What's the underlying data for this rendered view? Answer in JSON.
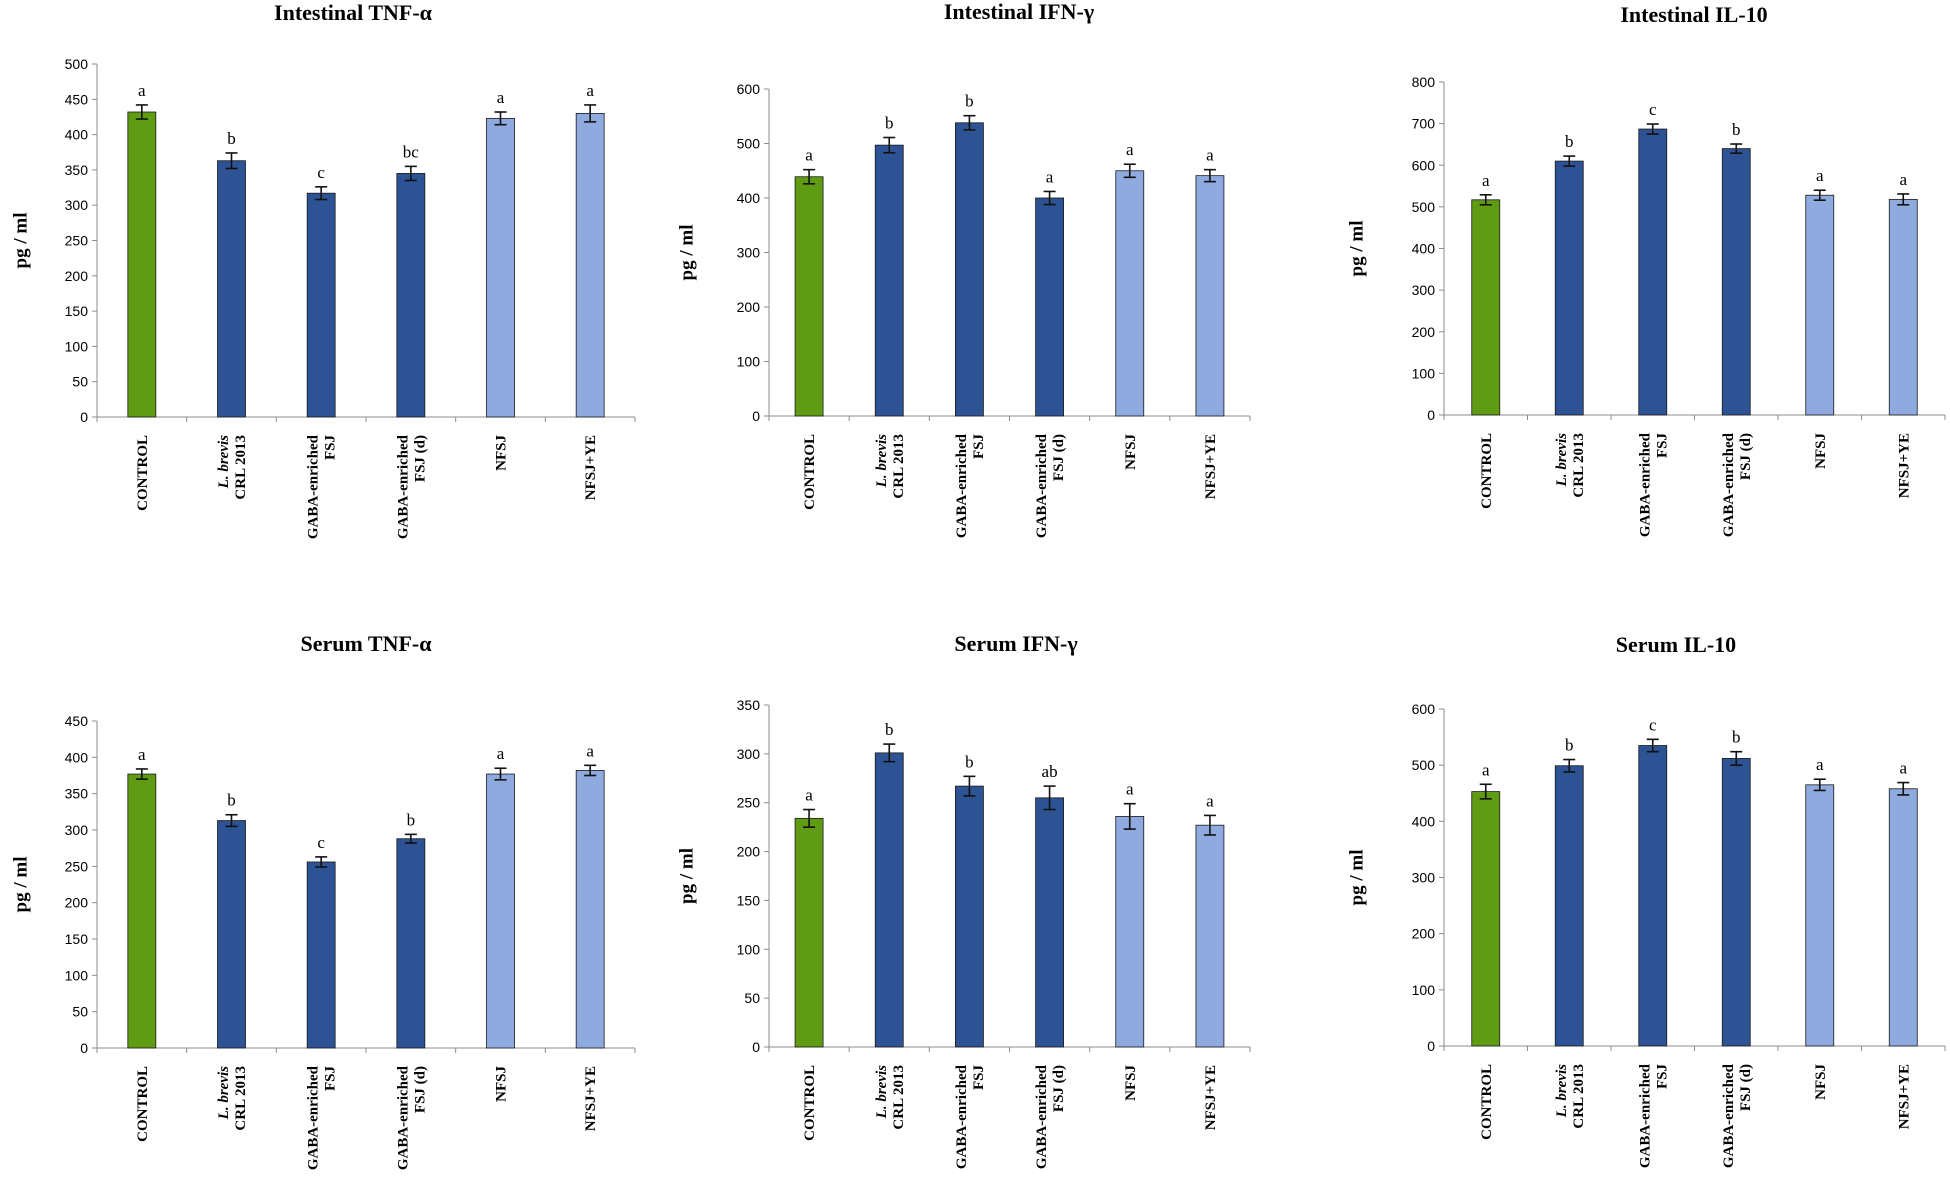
{
  "palette": {
    "control": "#5f9b13",
    "treatment_dark": "#2e5395",
    "treatment_light": "#8eaadf"
  },
  "chart_data": [
    {
      "type": "bar",
      "title": "Intestinal TNF-α",
      "ylabel": "pg / ml",
      "ylim": [
        0,
        500
      ],
      "yticks": [
        0,
        50,
        100,
        150,
        200,
        250,
        300,
        350,
        400,
        450,
        500
      ],
      "categories": [
        {
          "lines": [
            {
              "text": "CONTROL",
              "italic": false
            }
          ]
        },
        {
          "lines": [
            {
              "text": "L. brevis",
              "italic": true
            },
            {
              "text": "CRL 2013",
              "italic": false
            }
          ]
        },
        {
          "lines": [
            {
              "text": "GABA-enriched",
              "italic": false
            },
            {
              "text": "FSJ",
              "italic": false
            }
          ]
        },
        {
          "lines": [
            {
              "text": "GABA-enriched",
              "italic": false
            },
            {
              "text": "FSJ (d)",
              "italic": false
            }
          ]
        },
        {
          "lines": [
            {
              "text": "NFSJ",
              "italic": false
            }
          ]
        },
        {
          "lines": [
            {
              "text": "NFSJ+YE",
              "italic": false
            }
          ]
        }
      ],
      "values": [
        432,
        363,
        317,
        345,
        423,
        430
      ],
      "errors": [
        10,
        11,
        9,
        10,
        9,
        12
      ],
      "letters": [
        "a",
        "b",
        "c",
        "bc",
        "a",
        "a"
      ],
      "bar_colors": [
        "#5f9b13",
        "#2e5395",
        "#2e5395",
        "#2e5395",
        "#8eaadf",
        "#8eaadf"
      ]
    },
    {
      "type": "bar",
      "title": "Intestinal IFN-γ",
      "ylabel": "pg / ml",
      "ylim": [
        0,
        600
      ],
      "yticks": [
        0,
        100,
        200,
        300,
        400,
        500,
        600
      ],
      "categories": [
        {
          "lines": [
            {
              "text": "CONTROL",
              "italic": false
            }
          ]
        },
        {
          "lines": [
            {
              "text": "L. brevis",
              "italic": true
            },
            {
              "text": "CRL 2013",
              "italic": false
            }
          ]
        },
        {
          "lines": [
            {
              "text": "GABA-enriched",
              "italic": false
            },
            {
              "text": "FSJ",
              "italic": false
            }
          ]
        },
        {
          "lines": [
            {
              "text": "GABA-enriched",
              "italic": false
            },
            {
              "text": "FSJ (d)",
              "italic": false
            }
          ]
        },
        {
          "lines": [
            {
              "text": "NFSJ",
              "italic": false
            }
          ]
        },
        {
          "lines": [
            {
              "text": "NFSJ+YE",
              "italic": false
            }
          ]
        }
      ],
      "values": [
        439,
        497,
        538,
        400,
        450,
        441
      ],
      "errors": [
        13,
        14,
        13,
        12,
        12,
        11
      ],
      "letters": [
        "a",
        "b",
        "b",
        "a",
        "a",
        "a"
      ],
      "bar_colors": [
        "#5f9b13",
        "#2e5395",
        "#2e5395",
        "#2e5395",
        "#8eaadf",
        "#8eaadf"
      ]
    },
    {
      "type": "bar",
      "title": "Intestinal IL-10",
      "ylabel": "pg / ml",
      "ylim": [
        0,
        800
      ],
      "yticks": [
        0,
        100,
        200,
        300,
        400,
        500,
        600,
        700,
        800
      ],
      "categories": [
        {
          "lines": [
            {
              "text": "CONTROL",
              "italic": false
            }
          ]
        },
        {
          "lines": [
            {
              "text": "L. brevis",
              "italic": true
            },
            {
              "text": "CRL 2013",
              "italic": false
            }
          ]
        },
        {
          "lines": [
            {
              "text": "GABA-enriched",
              "italic": false
            },
            {
              "text": "FSJ",
              "italic": false
            }
          ]
        },
        {
          "lines": [
            {
              "text": "GABA-enriched",
              "italic": false
            },
            {
              "text": "FSJ (d)",
              "italic": false
            }
          ]
        },
        {
          "lines": [
            {
              "text": "NFSJ",
              "italic": false
            }
          ]
        },
        {
          "lines": [
            {
              "text": "NFSJ+YE",
              "italic": false
            }
          ]
        }
      ],
      "values": [
        517,
        610,
        687,
        640,
        528,
        518
      ],
      "errors": [
        12,
        12,
        12,
        11,
        12,
        13
      ],
      "letters": [
        "a",
        "b",
        "c",
        "b",
        "a",
        "a"
      ],
      "bar_colors": [
        "#5f9b13",
        "#2e5395",
        "#2e5395",
        "#2e5395",
        "#8eaadf",
        "#8eaadf"
      ]
    },
    {
      "type": "bar",
      "title": "Serum TNF-α",
      "ylabel": "pg / ml",
      "ylim": [
        0,
        450
      ],
      "yticks": [
        0,
        50,
        100,
        150,
        200,
        250,
        300,
        350,
        400,
        450
      ],
      "categories": [
        {
          "lines": [
            {
              "text": "CONTROL",
              "italic": false
            }
          ]
        },
        {
          "lines": [
            {
              "text": "L. brevis",
              "italic": true
            },
            {
              "text": "CRL 2013",
              "italic": false
            }
          ]
        },
        {
          "lines": [
            {
              "text": "GABA-enriched",
              "italic": false
            },
            {
              "text": "FSJ",
              "italic": false
            }
          ]
        },
        {
          "lines": [
            {
              "text": "GABA-enriched",
              "italic": false
            },
            {
              "text": "FSJ (d)",
              "italic": false
            }
          ]
        },
        {
          "lines": [
            {
              "text": "NFSJ",
              "italic": false
            }
          ]
        },
        {
          "lines": [
            {
              "text": "NFSJ+YE",
              "italic": false
            }
          ]
        }
      ],
      "values": [
        377,
        313,
        256,
        288,
        377,
        382
      ],
      "errors": [
        7,
        8,
        7,
        6,
        8,
        7
      ],
      "letters": [
        "a",
        "b",
        "c",
        "b",
        "a",
        "a"
      ],
      "bar_colors": [
        "#5f9b13",
        "#2e5395",
        "#2e5395",
        "#2e5395",
        "#8eaadf",
        "#8eaadf"
      ]
    },
    {
      "type": "bar",
      "title": "Serum IFN-γ",
      "ylabel": "pg / ml",
      "ylim": [
        0,
        350
      ],
      "yticks": [
        0,
        50,
        100,
        150,
        200,
        250,
        300,
        350
      ],
      "categories": [
        {
          "lines": [
            {
              "text": "CONTROL",
              "italic": false
            }
          ]
        },
        {
          "lines": [
            {
              "text": "L. brevis",
              "italic": true
            },
            {
              "text": "CRL 2013",
              "italic": false
            }
          ]
        },
        {
          "lines": [
            {
              "text": "GABA-enriched",
              "italic": false
            },
            {
              "text": "FSJ",
              "italic": false
            }
          ]
        },
        {
          "lines": [
            {
              "text": "GABA-enriched",
              "italic": false
            },
            {
              "text": "FSJ (d)",
              "italic": false
            }
          ]
        },
        {
          "lines": [
            {
              "text": "NFSJ",
              "italic": false
            }
          ]
        },
        {
          "lines": [
            {
              "text": "NFSJ+YE",
              "italic": false
            }
          ]
        }
      ],
      "values": [
        234,
        301,
        267,
        255,
        236,
        227
      ],
      "errors": [
        9,
        9,
        10,
        12,
        13,
        10
      ],
      "letters": [
        "a",
        "b",
        "b",
        "ab",
        "a",
        "a"
      ],
      "bar_colors": [
        "#5f9b13",
        "#2e5395",
        "#2e5395",
        "#2e5395",
        "#8eaadf",
        "#8eaadf"
      ]
    },
    {
      "type": "bar",
      "title": "Serum IL-10",
      "ylabel": "pg / ml",
      "ylim": [
        0,
        600
      ],
      "yticks": [
        0,
        100,
        200,
        300,
        400,
        500,
        600
      ],
      "categories": [
        {
          "lines": [
            {
              "text": "CONTROL",
              "italic": false
            }
          ]
        },
        {
          "lines": [
            {
              "text": "L. brevis",
              "italic": true
            },
            {
              "text": "CRL 2013",
              "italic": false
            }
          ]
        },
        {
          "lines": [
            {
              "text": "GABA-enriched",
              "italic": false
            },
            {
              "text": "FSJ",
              "italic": false
            }
          ]
        },
        {
          "lines": [
            {
              "text": "GABA-enriched",
              "italic": false
            },
            {
              "text": "FSJ (d)",
              "italic": false
            }
          ]
        },
        {
          "lines": [
            {
              "text": "NFSJ",
              "italic": false
            }
          ]
        },
        {
          "lines": [
            {
              "text": "NFSJ+YE",
              "italic": false
            }
          ]
        }
      ],
      "values": [
        453,
        499,
        535,
        512,
        465,
        458
      ],
      "errors": [
        13,
        11,
        11,
        12,
        10,
        11
      ],
      "letters": [
        "a",
        "b",
        "c",
        "b",
        "a",
        "a"
      ],
      "bar_colors": [
        "#5f9b13",
        "#2e5395",
        "#2e5395",
        "#2e5395",
        "#8eaadf",
        "#8eaadf"
      ]
    }
  ]
}
